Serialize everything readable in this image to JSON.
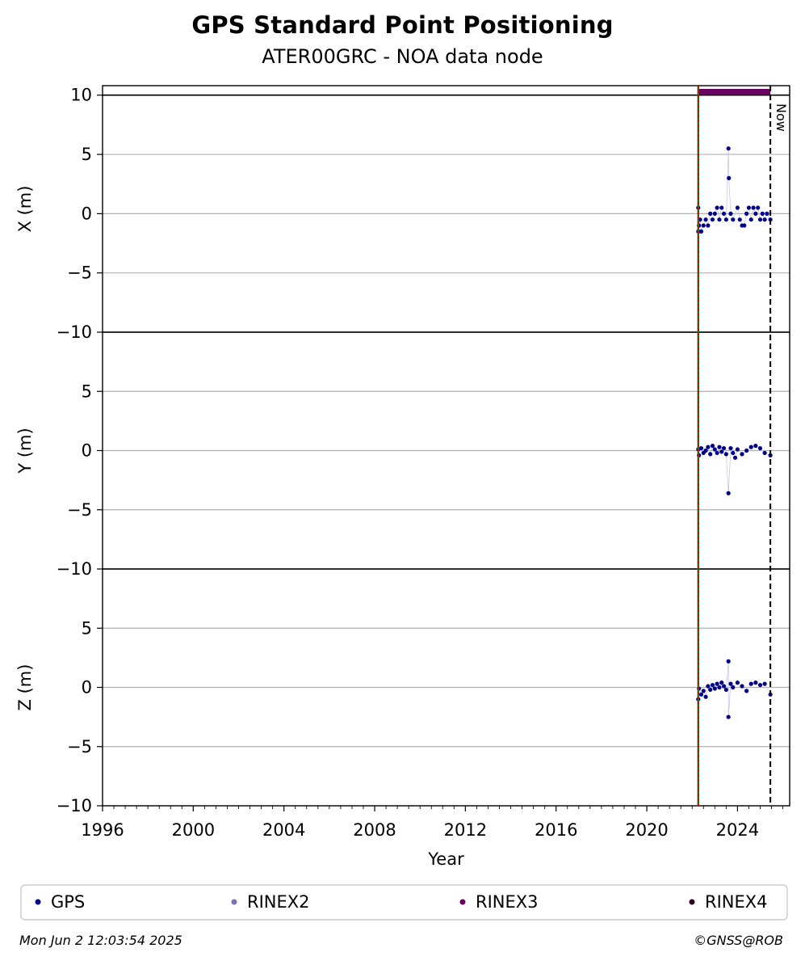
{
  "chart_data": {
    "type": "scatter",
    "title": "GPS Standard Point Positioning",
    "subtitle": "ATER00GRC - NOA data node",
    "xlabel": "Year",
    "xlim": [
      1996,
      2026.3
    ],
    "xticks": [
      1996,
      2000,
      2004,
      2008,
      2012,
      2016,
      2020,
      2024
    ],
    "x_minor_step": 0.5,
    "panels": [
      {
        "ylabel": "X (m)",
        "ylim": [
          -10,
          10.8
        ],
        "yticks": [
          -10,
          -5,
          0,
          5,
          10
        ],
        "series": [
          {
            "name": "GPS",
            "color": "#00008b",
            "points": [
              [
                2022.27,
                0.5
              ],
              [
                2022.27,
                -1.5
              ],
              [
                2022.3,
                -1.0
              ],
              [
                2022.35,
                -0.5
              ],
              [
                2022.4,
                -1.5
              ],
              [
                2022.5,
                -1.0
              ],
              [
                2022.6,
                -0.5
              ],
              [
                2022.7,
                -1.0
              ],
              [
                2022.8,
                0.0
              ],
              [
                2022.9,
                -0.5
              ],
              [
                2023.0,
                0.0
              ],
              [
                2023.1,
                0.5
              ],
              [
                2023.2,
                -0.5
              ],
              [
                2023.3,
                0.5
              ],
              [
                2023.4,
                0.0
              ],
              [
                2023.5,
                -0.5
              ],
              [
                2023.6,
                5.5
              ],
              [
                2023.62,
                3.0
              ],
              [
                2023.7,
                0.0
              ],
              [
                2023.8,
                -0.5
              ],
              [
                2024.0,
                0.5
              ],
              [
                2024.1,
                -0.5
              ],
              [
                2024.2,
                -1.0
              ],
              [
                2024.3,
                -1.0
              ],
              [
                2024.4,
                0.0
              ],
              [
                2024.5,
                0.5
              ],
              [
                2024.6,
                -0.5
              ],
              [
                2024.7,
                0.5
              ],
              [
                2024.8,
                0.0
              ],
              [
                2024.9,
                0.5
              ],
              [
                2025.0,
                -0.5
              ],
              [
                2025.1,
                0.0
              ],
              [
                2025.2,
                -0.5
              ],
              [
                2025.3,
                0.0
              ],
              [
                2025.45,
                -0.5
              ]
            ]
          }
        ]
      },
      {
        "ylabel": "Y (m)",
        "ylim": [
          -10,
          10
        ],
        "yticks": [
          -10,
          -5,
          0,
          5
        ],
        "series": [
          {
            "name": "GPS",
            "color": "#00008b",
            "points": [
              [
                2022.27,
                0.1
              ],
              [
                2022.3,
                -0.4
              ],
              [
                2022.4,
                0.2
              ],
              [
                2022.5,
                -0.2
              ],
              [
                2022.6,
                0.0
              ],
              [
                2022.7,
                0.3
              ],
              [
                2022.8,
                -0.3
              ],
              [
                2022.9,
                0.4
              ],
              [
                2023.0,
                0.1
              ],
              [
                2023.1,
                -0.2
              ],
              [
                2023.2,
                0.3
              ],
              [
                2023.3,
                -0.1
              ],
              [
                2023.4,
                0.2
              ],
              [
                2023.5,
                -0.3
              ],
              [
                2023.6,
                -3.6
              ],
              [
                2023.7,
                0.2
              ],
              [
                2023.8,
                -0.2
              ],
              [
                2023.9,
                -0.6
              ],
              [
                2024.0,
                0.1
              ],
              [
                2024.2,
                -0.3
              ],
              [
                2024.4,
                0.0
              ],
              [
                2024.6,
                0.3
              ],
              [
                2024.8,
                0.4
              ],
              [
                2025.0,
                0.2
              ],
              [
                2025.2,
                -0.2
              ],
              [
                2025.45,
                -0.4
              ]
            ]
          }
        ]
      },
      {
        "ylabel": "Z (m)",
        "ylim": [
          -10,
          10
        ],
        "yticks": [
          -10,
          -5,
          0,
          5
        ],
        "series": [
          {
            "name": "GPS",
            "color": "#00008b",
            "points": [
              [
                2022.27,
                -1.0
              ],
              [
                2022.3,
                -0.1
              ],
              [
                2022.4,
                -0.6
              ],
              [
                2022.5,
                -0.3
              ],
              [
                2022.6,
                -0.8
              ],
              [
                2022.7,
                0.1
              ],
              [
                2022.8,
                -0.2
              ],
              [
                2022.9,
                0.2
              ],
              [
                2023.0,
                -0.1
              ],
              [
                2023.1,
                0.3
              ],
              [
                2023.2,
                0.0
              ],
              [
                2023.3,
                0.4
              ],
              [
                2023.4,
                0.1
              ],
              [
                2023.5,
                -0.2
              ],
              [
                2023.6,
                2.2
              ],
              [
                2023.6,
                -2.5
              ],
              [
                2023.7,
                0.3
              ],
              [
                2023.8,
                0.0
              ],
              [
                2024.0,
                0.4
              ],
              [
                2024.2,
                0.1
              ],
              [
                2024.4,
                -0.3
              ],
              [
                2024.6,
                0.3
              ],
              [
                2024.8,
                0.4
              ],
              [
                2025.0,
                0.2
              ],
              [
                2025.2,
                0.3
              ],
              [
                2025.45,
                -0.6
              ]
            ]
          }
        ]
      }
    ],
    "rinex3_bar": {
      "x_start": 2022.27,
      "x_end": 2025.45,
      "color": "#6a005f"
    },
    "start_line": {
      "x": 2022.27,
      "colors": [
        "#008000",
        "#cc0000"
      ]
    },
    "now_line": {
      "x": 2025.45,
      "label": "Now"
    },
    "grid": "horizontal",
    "legend": {
      "placement": "bottom",
      "entries": [
        {
          "label": "GPS",
          "color": "#00008b"
        },
        {
          "label": "RINEX2",
          "color": "#7b72b8"
        },
        {
          "label": "RINEX3",
          "color": "#6a005f"
        },
        {
          "label": "RINEX4",
          "color": "#2b0018"
        }
      ]
    }
  },
  "footer": {
    "timestamp": "Mon Jun  2 12:03:54 2025",
    "copyright": "©GNSS@ROB"
  }
}
